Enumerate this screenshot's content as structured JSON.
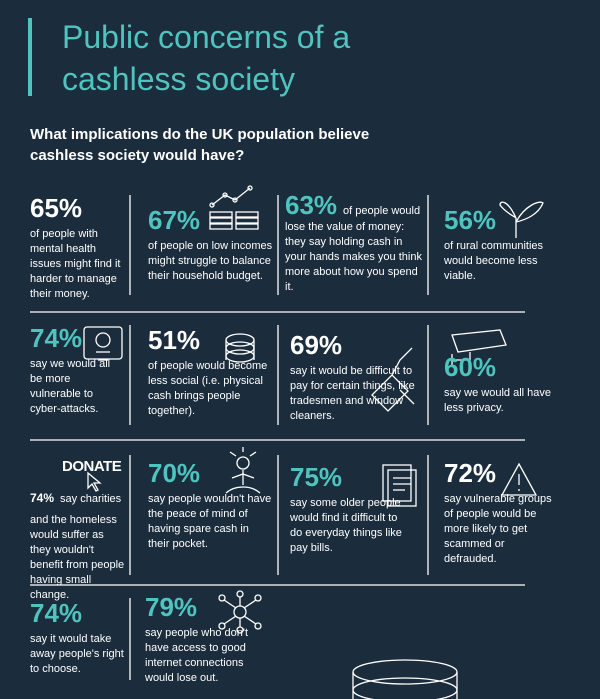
{
  "header": {
    "title": "Public concerns of a cashless society",
    "subtitle": "What implications do the UK population believe cashless society would have?"
  },
  "donate_label": "DONATE",
  "stats": [
    {
      "stat": "65%",
      "text": "of people with mental health issues might find it harder to manage their money."
    },
    {
      "stat": "67%",
      "text": "of people on low incomes might struggle to balance their household budget."
    },
    {
      "stat": "63%",
      "text": "of people would lose the value of money: they say holding cash in your hands makes you think more about how you spend it."
    },
    {
      "stat": "56%",
      "text": "of rural communities would become less viable."
    },
    {
      "stat": "74%",
      "text": "say we would all be more vulnerable to cyber-attacks."
    },
    {
      "stat": "51%",
      "text": "of people would become less social (i.e. physical cash brings people together)."
    },
    {
      "stat": "69%",
      "text": "say it would be difficult to pay for certain things, like tradesmen and window cleaners."
    },
    {
      "stat": "60%",
      "text": "say we would all have less privacy."
    },
    {
      "stat": "74%",
      "text": "say charities and the homeless would suffer as they wouldn't benefit from people having small change."
    },
    {
      "stat": "70%",
      "text": "say people wouldn't have the peace of mind of having spare cash in their pocket."
    },
    {
      "stat": "75%",
      "text": "say some older people would find it difficult to do everyday things like pay bills."
    },
    {
      "stat": "72%",
      "text": "say vulnerable groups of people would be more likely to get scammed or defrauded."
    },
    {
      "stat": "74%",
      "text": "say it would take away people's right to choose."
    },
    {
      "stat": "79%",
      "text": "say people who don't have access to good internet connections would lose out."
    }
  ]
}
